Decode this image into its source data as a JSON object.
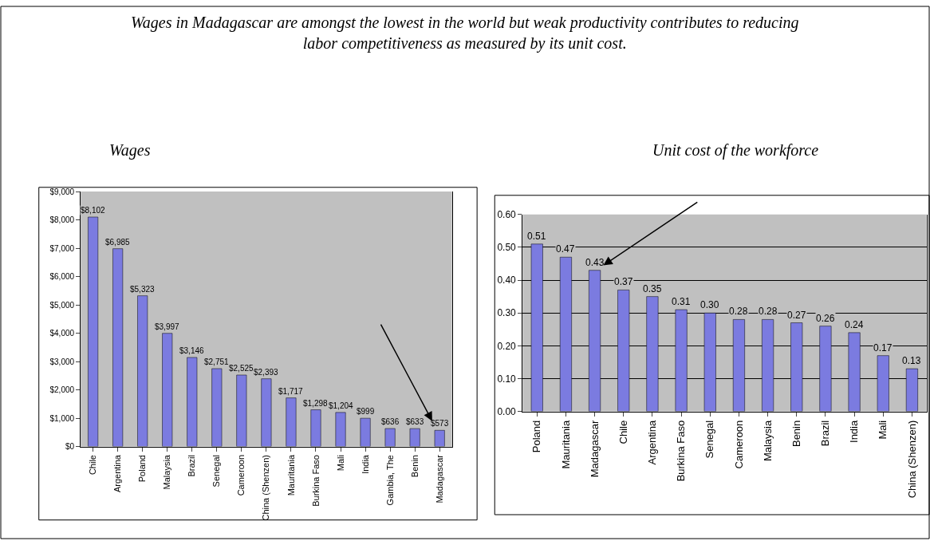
{
  "chart_data": [
    {
      "type": "bar",
      "title": "Wages in Madagascar are amongst the lowest in the world but weak productivity contributes to reducing labor competitiveness as measured by its unit cost.",
      "subtitle": "Wages",
      "categories": [
        "Chile",
        "Argentina",
        "Poland",
        "Malaysia",
        "Brazil",
        "Senegal",
        "Cameroon",
        "China (Shenzen)",
        "Mauritania",
        "Burkina Faso",
        "Mali",
        "India",
        "Gambia, The",
        "Benin",
        "Madagascar"
      ],
      "values": [
        8102,
        6985,
        5323,
        3997,
        3146,
        2751,
        2525,
        2393,
        1717,
        1298,
        1204,
        999,
        636,
        633,
        573
      ],
      "value_labels": [
        "$8,102",
        "$6,985",
        "$5,323",
        "$3,997",
        "$3,146",
        "$2,751",
        "$2,525",
        "$2,393",
        "$1,717",
        "$1,298",
        "$1,204",
        "$999",
        "$636",
        "$633",
        "$573"
      ],
      "color": "#7b7be0",
      "ylim": [
        0,
        9000
      ],
      "yticks": [
        {
          "value": 0,
          "label": "$0"
        },
        {
          "value": 1000,
          "label": "$1,000"
        },
        {
          "value": 2000,
          "label": "$2,000"
        },
        {
          "value": 3000,
          "label": "$3,000"
        },
        {
          "value": 4000,
          "label": "$4,000"
        },
        {
          "value": 5000,
          "label": "$5,000"
        },
        {
          "value": 6000,
          "label": "$6,000"
        },
        {
          "value": 7000,
          "label": "$7,000"
        },
        {
          "value": 8000,
          "label": "$8,000"
        },
        {
          "value": 9000,
          "label": "$9,000"
        }
      ],
      "grid": false
    },
    {
      "type": "bar",
      "title": "Unit cost of the workforce",
      "categories": [
        "Poland",
        "Mauritania",
        "Madagascar",
        "Chile",
        "Argentina",
        "Burkina Faso",
        "Senegal",
        "Cameroon",
        "Malaysia",
        "Benin",
        "Brazil",
        "India",
        "Mali",
        "China (Shenzen)"
      ],
      "values": [
        0.51,
        0.47,
        0.43,
        0.37,
        0.35,
        0.31,
        0.3,
        0.28,
        0.28,
        0.27,
        0.26,
        0.24,
        0.17,
        0.13
      ],
      "value_labels": [
        "0.51",
        "0.47",
        "0.43",
        "0.37",
        "0.35",
        "0.31",
        "0.30",
        "0.28",
        "0.28",
        "0.27",
        "0.26",
        "0.24",
        "0.17",
        "0.13"
      ],
      "color": "#7b7be0",
      "ylim": [
        0,
        0.6
      ],
      "yticks": [
        {
          "value": 0,
          "label": "0.00"
        },
        {
          "value": 0.1,
          "label": "0.10"
        },
        {
          "value": 0.2,
          "label": "0.20"
        },
        {
          "value": 0.3,
          "label": "0.30"
        },
        {
          "value": 0.4,
          "label": "0.40"
        },
        {
          "value": 0.5,
          "label": "0.50"
        },
        {
          "value": 0.6,
          "label": "0.60"
        }
      ],
      "grid": "y"
    }
  ]
}
